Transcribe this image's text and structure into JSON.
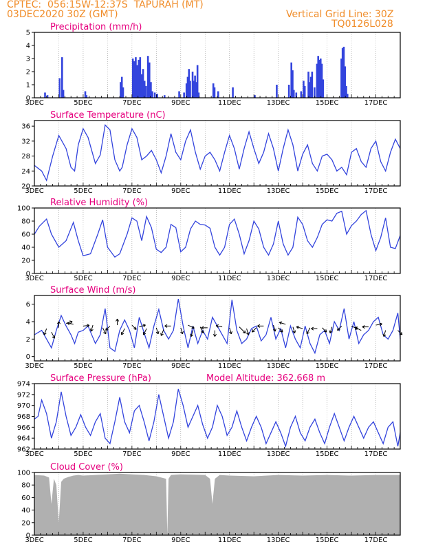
{
  "header": {
    "line1": "CPTEC:  056:15W-12:37S  TAPURAH (MT)",
    "line2": "03DEC2020 30Z (GMT)",
    "grid_note": "Vertical Grid Line: 30Z",
    "code": "TQ0126L028"
  },
  "colors": {
    "header": "#f08c28",
    "title": "#e6007e",
    "line": "#3344dd",
    "cloud": "#b0b0b0"
  },
  "chart_data": [
    {
      "id": "precip",
      "type": "bar",
      "title": "Precipitation (mm/h)",
      "x_ticks": [
        "3DEC",
        "5DEC",
        "7DEC",
        "9DEC",
        "11DEC",
        "13DEC",
        "15DEC",
        "17DEC"
      ],
      "ylim": [
        0,
        5
      ],
      "yticks": [
        0,
        1,
        2,
        3,
        4,
        5
      ],
      "bars": [
        [
          3.4,
          0.4
        ],
        [
          3.5,
          0.2
        ],
        [
          4.0,
          1.5
        ],
        [
          4.1,
          3.1
        ],
        [
          4.15,
          0.6
        ],
        [
          5.05,
          0.5
        ],
        [
          5.1,
          0.2
        ],
        [
          6.5,
          1.2
        ],
        [
          6.55,
          1.6
        ],
        [
          6.6,
          0.8
        ],
        [
          7.0,
          3.0
        ],
        [
          7.06,
          2.8
        ],
        [
          7.12,
          3.1
        ],
        [
          7.18,
          2.5
        ],
        [
          7.24,
          2.9
        ],
        [
          7.3,
          3.1
        ],
        [
          7.36,
          1.8
        ],
        [
          7.42,
          2.2
        ],
        [
          7.48,
          1.3
        ],
        [
          7.54,
          0.9
        ],
        [
          7.62,
          3.2
        ],
        [
          7.68,
          2.7
        ],
        [
          7.74,
          1.2
        ],
        [
          7.8,
          0.5
        ],
        [
          7.9,
          0.4
        ],
        [
          8.0,
          0.3
        ],
        [
          8.3,
          0.2
        ],
        [
          8.9,
          0.5
        ],
        [
          9.1,
          0.4
        ],
        [
          9.2,
          1.1
        ],
        [
          9.25,
          1.6
        ],
        [
          9.3,
          2.2
        ],
        [
          9.35,
          1.3
        ],
        [
          9.45,
          2.0
        ],
        [
          9.5,
          1.3
        ],
        [
          9.55,
          1.7
        ],
        [
          9.6,
          1.2
        ],
        [
          9.65,
          2.5
        ],
        [
          9.7,
          0.4
        ],
        [
          10.3,
          1.1
        ],
        [
          10.35,
          0.8
        ],
        [
          10.5,
          0.5
        ],
        [
          11.1,
          0.8
        ],
        [
          12.0,
          0.2
        ],
        [
          12.9,
          1.0
        ],
        [
          13.4,
          1.0
        ],
        [
          13.5,
          2.7
        ],
        [
          13.55,
          2.1
        ],
        [
          13.6,
          0.6
        ],
        [
          13.7,
          0.4
        ],
        [
          13.9,
          0.5
        ],
        [
          14.0,
          1.3
        ],
        [
          14.05,
          0.9
        ],
        [
          14.2,
          2.0
        ],
        [
          14.25,
          1.2
        ],
        [
          14.3,
          1.6
        ],
        [
          14.35,
          2.0
        ],
        [
          14.45,
          0.8
        ],
        [
          14.55,
          2.6
        ],
        [
          14.6,
          3.2
        ],
        [
          14.65,
          2.9
        ],
        [
          14.7,
          3.0
        ],
        [
          14.75,
          2.6
        ],
        [
          14.8,
          1.4
        ],
        [
          15.55,
          3.0
        ],
        [
          15.6,
          3.8
        ],
        [
          15.65,
          3.9
        ],
        [
          15.7,
          2.4
        ],
        [
          15.75,
          0.9
        ],
        [
          15.8,
          0.3
        ]
      ]
    },
    {
      "id": "temp",
      "type": "line",
      "title": "Surface Temperature (nC)",
      "x_ticks": [
        "3DEC",
        "5DEC",
        "7DEC",
        "9DEC",
        "11DEC",
        "13DEC",
        "15DEC",
        "17DEC"
      ],
      "ylim": [
        20,
        37.5
      ],
      "yticks": [
        20,
        24,
        28,
        32,
        36
      ],
      "x": [
        3.0,
        3.3,
        3.5,
        3.75,
        4.0,
        4.3,
        4.5,
        4.65,
        4.8,
        5.0,
        5.2,
        5.5,
        5.7,
        5.9,
        6.1,
        6.3,
        6.5,
        6.6,
        6.8,
        7.0,
        7.2,
        7.4,
        7.6,
        7.8,
        8.0,
        8.2,
        8.4,
        8.6,
        8.8,
        9.0,
        9.2,
        9.4,
        9.6,
        9.8,
        10.0,
        10.2,
        10.4,
        10.6,
        10.8,
        11.0,
        11.2,
        11.4,
        11.6,
        11.8,
        12.0,
        12.2,
        12.4,
        12.6,
        12.8,
        13.0,
        13.2,
        13.4,
        13.6,
        13.8,
        14.0,
        14.2,
        14.4,
        14.6,
        14.8,
        15.0,
        15.2,
        15.4,
        15.6,
        15.8,
        16.0,
        16.2,
        16.4,
        16.6,
        16.8,
        17.0,
        17.2,
        17.4,
        17.6,
        17.8,
        18.0
      ],
      "values": [
        25.5,
        24.0,
        21.5,
        28,
        33.5,
        30,
        25,
        24,
        31,
        35.3,
        33,
        26,
        28.3,
        36.3,
        35,
        27,
        24,
        25,
        31,
        35.3,
        33,
        27,
        28,
        29.5,
        27,
        23.5,
        28,
        34,
        29,
        27,
        32,
        35,
        29,
        24.5,
        28,
        29,
        27,
        24,
        29,
        33.5,
        30,
        24.5,
        30,
        34.5,
        30,
        26,
        29,
        34,
        30,
        24,
        30,
        35,
        31,
        24,
        28.5,
        31,
        26,
        24,
        28,
        28.5,
        27,
        24,
        25,
        23,
        29,
        30,
        26.5,
        25,
        30,
        32,
        26.5,
        24,
        29,
        32.5,
        30
      ]
    },
    {
      "id": "rh",
      "type": "line",
      "title": "Relative Humidity (%)",
      "x_ticks": [
        "3DEC",
        "5DEC",
        "7DEC",
        "9DEC",
        "11DEC",
        "13DEC",
        "15DEC",
        "17DEC"
      ],
      "ylim": [
        0,
        100
      ],
      "yticks": [
        0,
        20,
        40,
        60,
        80,
        100
      ],
      "x": [
        3.0,
        3.2,
        3.5,
        3.7,
        4.0,
        4.3,
        4.6,
        4.8,
        5.0,
        5.3,
        5.6,
        5.8,
        6.0,
        6.3,
        6.5,
        6.8,
        7.0,
        7.2,
        7.4,
        7.6,
        7.8,
        8.0,
        8.2,
        8.4,
        8.6,
        8.8,
        9.0,
        9.2,
        9.4,
        9.6,
        9.8,
        10.0,
        10.2,
        10.4,
        10.6,
        10.8,
        11.0,
        11.2,
        11.4,
        11.6,
        11.8,
        12.0,
        12.2,
        12.4,
        12.6,
        12.8,
        13.0,
        13.2,
        13.4,
        13.6,
        13.8,
        14.0,
        14.2,
        14.4,
        14.6,
        14.8,
        15.0,
        15.2,
        15.4,
        15.6,
        15.8,
        16.0,
        16.2,
        16.4,
        16.6,
        16.8,
        17.0,
        17.2,
        17.4,
        17.6,
        17.8,
        18.0
      ],
      "values": [
        60,
        72,
        83,
        60,
        40,
        50,
        78,
        50,
        27,
        30,
        60,
        82,
        40,
        25,
        30,
        60,
        85,
        80,
        50,
        87,
        70,
        37,
        32,
        40,
        75,
        70,
        33,
        40,
        68,
        80,
        75,
        74,
        69,
        40,
        28,
        40,
        75,
        83,
        60,
        30,
        50,
        80,
        68,
        40,
        28,
        45,
        80,
        45,
        28,
        40,
        86,
        75,
        50,
        40,
        55,
        75,
        82,
        80,
        92,
        95,
        60,
        73,
        80,
        90,
        96,
        60,
        35,
        55,
        85,
        40,
        38,
        58
      ]
    },
    {
      "id": "wind",
      "type": "line",
      "title": "Surface Wind (m/s)",
      "x_ticks": [
        "3DEC",
        "5DEC",
        "7DEC",
        "9DEC",
        "11DEC",
        "13DEC",
        "15DEC",
        "17DEC"
      ],
      "ylim": [
        -0.5,
        7
      ],
      "yticks": [
        0,
        2,
        4,
        6
      ],
      "x": [
        3.0,
        3.3,
        3.5,
        3.7,
        3.9,
        4.1,
        4.3,
        4.5,
        4.65,
        4.8,
        5.0,
        5.2,
        5.5,
        5.7,
        5.9,
        6.1,
        6.3,
        6.5,
        6.7,
        6.9,
        7.1,
        7.3,
        7.5,
        7.7,
        7.9,
        8.1,
        8.3,
        8.5,
        8.7,
        8.9,
        9.1,
        9.3,
        9.5,
        9.7,
        9.9,
        10.1,
        10.3,
        10.5,
        10.7,
        10.9,
        11.1,
        11.3,
        11.5,
        11.7,
        11.9,
        12.1,
        12.3,
        12.5,
        12.7,
        12.9,
        13.1,
        13.3,
        13.5,
        13.7,
        13.9,
        14.1,
        14.3,
        14.5,
        14.7,
        14.9,
        15.1,
        15.3,
        15.5,
        15.7,
        15.9,
        16.1,
        16.3,
        16.5,
        16.7,
        16.9,
        17.1,
        17.3,
        17.5,
        17.7,
        17.9,
        18.0
      ],
      "values": [
        2.5,
        3.0,
        2.0,
        1.0,
        3.0,
        4.7,
        3.5,
        2.5,
        1.5,
        2.8,
        3.0,
        3.5,
        1.5,
        2.5,
        5.5,
        1.0,
        0.6,
        3.0,
        4.2,
        3.0,
        1.0,
        4.5,
        2.7,
        1.0,
        3.5,
        5.4,
        3.0,
        2.0,
        3.0,
        6.6,
        3.5,
        1.0,
        3.5,
        1.5,
        3.0,
        2.0,
        4.5,
        3.5,
        2.5,
        1.5,
        6.5,
        3.0,
        1.5,
        2.0,
        3.2,
        3.5,
        1.8,
        2.5,
        4.5,
        2.0,
        3.2,
        1.0,
        3.5,
        2.0,
        1.0,
        3.5,
        1.5,
        0.4,
        2.5,
        3.0,
        1.5,
        4.0,
        3.0,
        5.5,
        2.0,
        4.0,
        1.5,
        2.5,
        3.0,
        4.0,
        4.5,
        2.5,
        2.0,
        3.0,
        5.0,
        2.0
      ],
      "arrows": [
        [
          3.5,
          3.2,
          -0.4,
          -1
        ],
        [
          3.7,
          2.8,
          0.5,
          -1
        ],
        [
          4.0,
          3.3,
          0,
          1
        ],
        [
          4.3,
          3.8,
          1,
          0.3
        ],
        [
          4.6,
          3.7,
          -1,
          0.2
        ],
        [
          5.0,
          3.5,
          1,
          0.1
        ],
        [
          5.4,
          3.6,
          -0.3,
          -1
        ],
        [
          5.8,
          3.3,
          0.5,
          -1
        ],
        [
          6.1,
          3.5,
          -0.7,
          -0.7
        ],
        [
          6.4,
          3.6,
          0,
          1
        ],
        [
          6.7,
          3.2,
          -0.5,
          -1
        ],
        [
          7.0,
          3.6,
          0.7,
          -0.7
        ],
        [
          7.3,
          3.4,
          1,
          0.3
        ],
        [
          7.6,
          3.2,
          -0.5,
          -1
        ],
        [
          8.0,
          3.3,
          0.3,
          -1
        ],
        [
          8.3,
          3.1,
          -0.4,
          -1
        ],
        [
          8.6,
          3.5,
          -1,
          0
        ],
        [
          9.0,
          3.3,
          0.3,
          -1
        ],
        [
          9.3,
          3.6,
          1,
          -0.5
        ],
        [
          9.5,
          3.0,
          -0.3,
          -1
        ],
        [
          9.8,
          3.4,
          0.5,
          -1
        ],
        [
          10.1,
          3.3,
          -1,
          0
        ],
        [
          10.4,
          3.0,
          0,
          -1
        ],
        [
          10.7,
          3.4,
          -1,
          0.2
        ],
        [
          11.0,
          3.3,
          0.3,
          -1
        ],
        [
          11.4,
          3.4,
          1,
          -1
        ],
        [
          11.7,
          3.2,
          0.3,
          -1
        ],
        [
          12.1,
          3.3,
          -0.7,
          -0.7
        ],
        [
          12.4,
          3.5,
          -1,
          0
        ],
        [
          12.8,
          3.6,
          0.3,
          -1
        ],
        [
          13.0,
          3.3,
          0.7,
          -0.7
        ],
        [
          13.3,
          3.7,
          -1,
          0.3
        ],
        [
          13.6,
          3.4,
          0.3,
          -1
        ],
        [
          14.0,
          3.2,
          -1,
          0.3
        ],
        [
          14.3,
          3.3,
          -0.5,
          -1
        ],
        [
          14.6,
          3.2,
          -1,
          0
        ],
        [
          14.8,
          3.3,
          0.7,
          -0.7
        ],
        [
          15.2,
          3.4,
          -0.3,
          -1
        ],
        [
          15.6,
          3.5,
          -0.7,
          -0.7
        ],
        [
          16.0,
          3.5,
          1,
          -0.5
        ],
        [
          16.4,
          3.0,
          -1,
          0.5
        ],
        [
          16.7,
          3.4,
          -1,
          0
        ],
        [
          17.0,
          3.6,
          1,
          0.2
        ],
        [
          17.4,
          3.0,
          -0.3,
          -1
        ],
        [
          17.9,
          3.0,
          0.7,
          -0.7
        ]
      ]
    },
    {
      "id": "press",
      "type": "line",
      "title": "Surface Pressure (hPa)",
      "note": "Model Altitude: 362.668 m",
      "x_ticks": [
        "3DEC",
        "5DEC",
        "7DEC",
        "9DEC",
        "11DEC",
        "13DEC",
        "15DEC",
        "17DEC"
      ],
      "ylim": [
        962,
        974
      ],
      "yticks": [
        962,
        964,
        966,
        968,
        970,
        972,
        974
      ],
      "x": [
        3.0,
        3.15,
        3.3,
        3.5,
        3.7,
        3.9,
        4.1,
        4.3,
        4.5,
        4.7,
        4.9,
        5.1,
        5.3,
        5.5,
        5.7,
        5.9,
        6.1,
        6.3,
        6.5,
        6.7,
        6.9,
        7.1,
        7.3,
        7.5,
        7.7,
        7.9,
        8.1,
        8.3,
        8.5,
        8.7,
        8.9,
        9.1,
        9.3,
        9.5,
        9.7,
        9.9,
        10.1,
        10.3,
        10.5,
        10.7,
        10.9,
        11.1,
        11.3,
        11.5,
        11.7,
        11.9,
        12.1,
        12.3,
        12.5,
        12.7,
        12.9,
        13.1,
        13.3,
        13.5,
        13.7,
        13.9,
        14.1,
        14.3,
        14.5,
        14.7,
        14.9,
        15.1,
        15.3,
        15.5,
        15.7,
        15.9,
        16.1,
        16.3,
        16.5,
        16.7,
        16.9,
        17.1,
        17.3,
        17.5,
        17.7,
        17.9,
        18.0
      ],
      "values": [
        967.5,
        968,
        971,
        968.5,
        964,
        967,
        972.5,
        968,
        964.5,
        966,
        968.3,
        966,
        964.5,
        967,
        968.5,
        964,
        963,
        967,
        971.5,
        967,
        965,
        969,
        970,
        967,
        963.5,
        967,
        972,
        968,
        964,
        967,
        973,
        970,
        966,
        968,
        970,
        966.5,
        964,
        966,
        970,
        968,
        964.5,
        966,
        969,
        966,
        963.5,
        966,
        968,
        966,
        963,
        965,
        967,
        965,
        962.5,
        966,
        968,
        965,
        963.5,
        966,
        967.5,
        965,
        963,
        966,
        968.5,
        966,
        963.5,
        966,
        968,
        966,
        964,
        966,
        967,
        965,
        963,
        966,
        967,
        962.5,
        965
      ]
    },
    {
      "id": "cloud",
      "type": "area",
      "title": "Cloud Cover (%)",
      "x_ticks": [
        "3DEC",
        "5DEC",
        "7DEC",
        "9DEC",
        "11DEC",
        "13DEC",
        "15DEC",
        "17DEC"
      ],
      "ylim": [
        0,
        100
      ],
      "yticks": [
        0,
        20,
        40,
        60,
        80,
        100
      ],
      "x": [
        3.0,
        3.4,
        3.6,
        3.7,
        3.8,
        3.9,
        4.0,
        4.1,
        4.2,
        4.4,
        4.6,
        4.8,
        5.0,
        5.5,
        6.0,
        6.5,
        7.0,
        7.5,
        8.0,
        8.4,
        8.45,
        8.5,
        8.6,
        9.0,
        10.0,
        10.2,
        10.3,
        10.4,
        10.6,
        11.0,
        12.0,
        13.0,
        14.0,
        15.0,
        16.0,
        17.0,
        18.0
      ],
      "values": [
        96,
        95,
        92,
        50,
        90,
        80,
        20,
        85,
        90,
        93,
        95,
        96,
        95,
        96,
        97,
        98,
        97,
        96,
        94,
        90,
        0,
        90,
        96,
        97,
        96,
        90,
        50,
        90,
        96,
        95,
        94,
        96,
        95,
        96,
        95,
        96,
        96
      ]
    }
  ]
}
